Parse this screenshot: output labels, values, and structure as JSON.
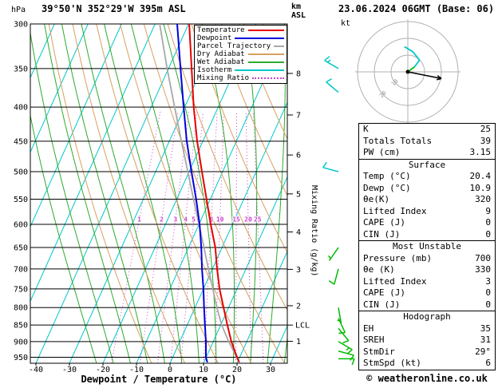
{
  "header": {
    "pressure_unit": "hPa",
    "title": "39°50'N 352°29'W 395m ASL",
    "altitude_unit_line1": "km",
    "altitude_unit_line2": "ASL",
    "datetime": "23.06.2024 06GMT (Base: 06)"
  },
  "legend": {
    "items": [
      {
        "label": "Temperature",
        "color": "#e60000",
        "style": "solid"
      },
      {
        "label": "Dewpoint",
        "color": "#0000dd",
        "style": "solid"
      },
      {
        "label": "Parcel Trajectory",
        "color": "#a8a8a8",
        "style": "solid"
      },
      {
        "label": "Dry Adiabat",
        "color": "#d8a060",
        "style": "solid"
      },
      {
        "label": "Wet Adiabat",
        "color": "#2eaa2e",
        "style": "solid"
      },
      {
        "label": "Isotherm",
        "color": "#00c8c8",
        "style": "solid"
      },
      {
        "label": "Mixing Ratio",
        "color": "#cc44cc",
        "style": "dotted"
      }
    ]
  },
  "axes": {
    "xlabel": "Dewpoint / Temperature (°C)",
    "pressure_ticks": [
      300,
      350,
      400,
      450,
      500,
      550,
      600,
      650,
      700,
      750,
      800,
      850,
      900,
      950
    ],
    "temp_ticks": [
      -40,
      -30,
      -20,
      -10,
      0,
      10,
      20,
      30
    ],
    "km_ticks": [
      1,
      2,
      3,
      4,
      5,
      6,
      7,
      8
    ],
    "km_tick_pressures": [
      899,
      795,
      701,
      616,
      540,
      472,
      411,
      356
    ],
    "mixing_ratio_values": [
      1,
      2,
      3,
      4,
      5,
      8,
      10,
      15,
      20,
      25
    ],
    "mixing_ratio_axis_label": "Mixing Ratio (g/kg)",
    "lcl_label": "LCL",
    "lcl_pressure_hpa": 850
  },
  "chart_data": {
    "type": "skewt-log-p",
    "pressure_bottom_hpa": 970,
    "pressure_top_hpa": 300,
    "temp_axis_range_c": [
      -40,
      30
    ],
    "temperature_profile_p_c": [
      [
        965,
        20.4
      ],
      [
        950,
        19.2
      ],
      [
        900,
        15.4
      ],
      [
        850,
        12.0
      ],
      [
        800,
        8.5
      ],
      [
        750,
        4.8
      ],
      [
        700,
        1.4
      ],
      [
        650,
        -2.0
      ],
      [
        600,
        -6.5
      ],
      [
        550,
        -11.1
      ],
      [
        500,
        -16.2
      ],
      [
        450,
        -21.7
      ],
      [
        400,
        -27.3
      ],
      [
        350,
        -33.1
      ],
      [
        300,
        -39.8
      ]
    ],
    "dewpoint_profile_p_c": [
      [
        965,
        10.9
      ],
      [
        950,
        9.9
      ],
      [
        900,
        7.8
      ],
      [
        850,
        5.3
      ],
      [
        800,
        2.7
      ],
      [
        750,
        0.0
      ],
      [
        700,
        -3.1
      ],
      [
        650,
        -6.2
      ],
      [
        600,
        -9.8
      ],
      [
        550,
        -14.2
      ],
      [
        500,
        -19.3
      ],
      [
        450,
        -24.8
      ],
      [
        400,
        -30.3
      ],
      [
        350,
        -36.4
      ],
      [
        300,
        -43.4
      ]
    ],
    "parcel_profile_p_c": [
      [
        965,
        20.4
      ],
      [
        950,
        19.1
      ],
      [
        900,
        14.6
      ],
      [
        850,
        10.3
      ],
      [
        800,
        6.5
      ],
      [
        750,
        2.8
      ],
      [
        700,
        -1.2
      ],
      [
        650,
        -5.4
      ],
      [
        600,
        -10.0
      ],
      [
        550,
        -15.0
      ],
      [
        500,
        -20.4
      ],
      [
        450,
        -26.4
      ],
      [
        400,
        -33.0
      ],
      [
        350,
        -40.4
      ],
      [
        300,
        -48.6
      ]
    ],
    "isotherm_step_c": 10,
    "dry_adiabats_theta_k": [
      270,
      280,
      290,
      300,
      310,
      320,
      330,
      340,
      350,
      360,
      370,
      380,
      390,
      400,
      410,
      420,
      430,
      440
    ],
    "wet_adiabats_tw_c": [
      -20,
      -15,
      -10,
      -5,
      0,
      5,
      10,
      15,
      20,
      25,
      30,
      35
    ],
    "wind_barbs": [
      {
        "p": 350,
        "dir_deg": 300,
        "spd_kt": 15,
        "color": "#00c8c8"
      },
      {
        "p": 380,
        "dir_deg": 310,
        "spd_kt": 10,
        "color": "#00c8c8"
      },
      {
        "p": 500,
        "dir_deg": 285,
        "spd_kt": 10,
        "color": "#00c8c8"
      },
      {
        "p": 650,
        "dir_deg": 215,
        "spd_kt": 5,
        "color": "#00bb00"
      },
      {
        "p": 700,
        "dir_deg": 195,
        "spd_kt": 10,
        "color": "#00bb00"
      },
      {
        "p": 800,
        "dir_deg": 170,
        "spd_kt": 5,
        "color": "#00bb00"
      },
      {
        "p": 830,
        "dir_deg": 155,
        "spd_kt": 10,
        "color": "#00bb00"
      },
      {
        "p": 860,
        "dir_deg": 140,
        "spd_kt": 10,
        "color": "#00bb00"
      },
      {
        "p": 900,
        "dir_deg": 120,
        "spd_kt": 15,
        "color": "#00bb00"
      },
      {
        "p": 930,
        "dir_deg": 105,
        "spd_kt": 10,
        "color": "#00bb00"
      },
      {
        "p": 955,
        "dir_deg": 90,
        "spd_kt": 10,
        "color": "#00bb00"
      }
    ]
  },
  "hodograph": {
    "unit": "kt",
    "rings_kt": [
      10,
      20,
      30
    ],
    "ring_labels": [
      {
        "text": "10",
        "kt": 10
      },
      {
        "text": "20",
        "kt": 20
      }
    ],
    "trace_kt": [
      {
        "u": 0,
        "v": 0,
        "color": "#00bb00"
      },
      {
        "u": 4,
        "v": 3,
        "color": "#00bb00"
      },
      {
        "u": 7,
        "v": 7,
        "color": "#00c8c8"
      },
      {
        "u": 3,
        "v": 12,
        "color": "#00c8c8"
      },
      {
        "u": -2,
        "v": 15,
        "color": "#00c8c8"
      }
    ],
    "storm_motion_dir_deg": 29,
    "storm_motion_spd_kt": 6,
    "arrow_kt": {
      "u": 20,
      "v": -4
    }
  },
  "indices": {
    "sections": [
      {
        "header": null,
        "rows": [
          [
            "K",
            "25"
          ],
          [
            "Totals Totals",
            "39"
          ],
          [
            "PW (cm)",
            "3.15"
          ]
        ]
      },
      {
        "header": "Surface",
        "rows": [
          [
            "Temp (°C)",
            "20.4"
          ],
          [
            "Dewp (°C)",
            "10.9"
          ],
          [
            "θe(K)",
            "320"
          ],
          [
            "Lifted Index",
            "9"
          ],
          [
            "CAPE (J)",
            "0"
          ],
          [
            "CIN (J)",
            "0"
          ]
        ]
      },
      {
        "header": "Most Unstable",
        "rows": [
          [
            "Pressure (mb)",
            "700"
          ],
          [
            "θe (K)",
            "330"
          ],
          [
            "Lifted Index",
            "3"
          ],
          [
            "CAPE (J)",
            "0"
          ],
          [
            "CIN (J)",
            "0"
          ]
        ]
      },
      {
        "header": "Hodograph",
        "rows": [
          [
            "EH",
            "35"
          ],
          [
            "SREH",
            "31"
          ],
          [
            "StmDir",
            "29°"
          ],
          [
            "StmSpd (kt)",
            "6"
          ]
        ]
      }
    ]
  },
  "footer": {
    "copyright": "© weatheronline.co.uk"
  }
}
